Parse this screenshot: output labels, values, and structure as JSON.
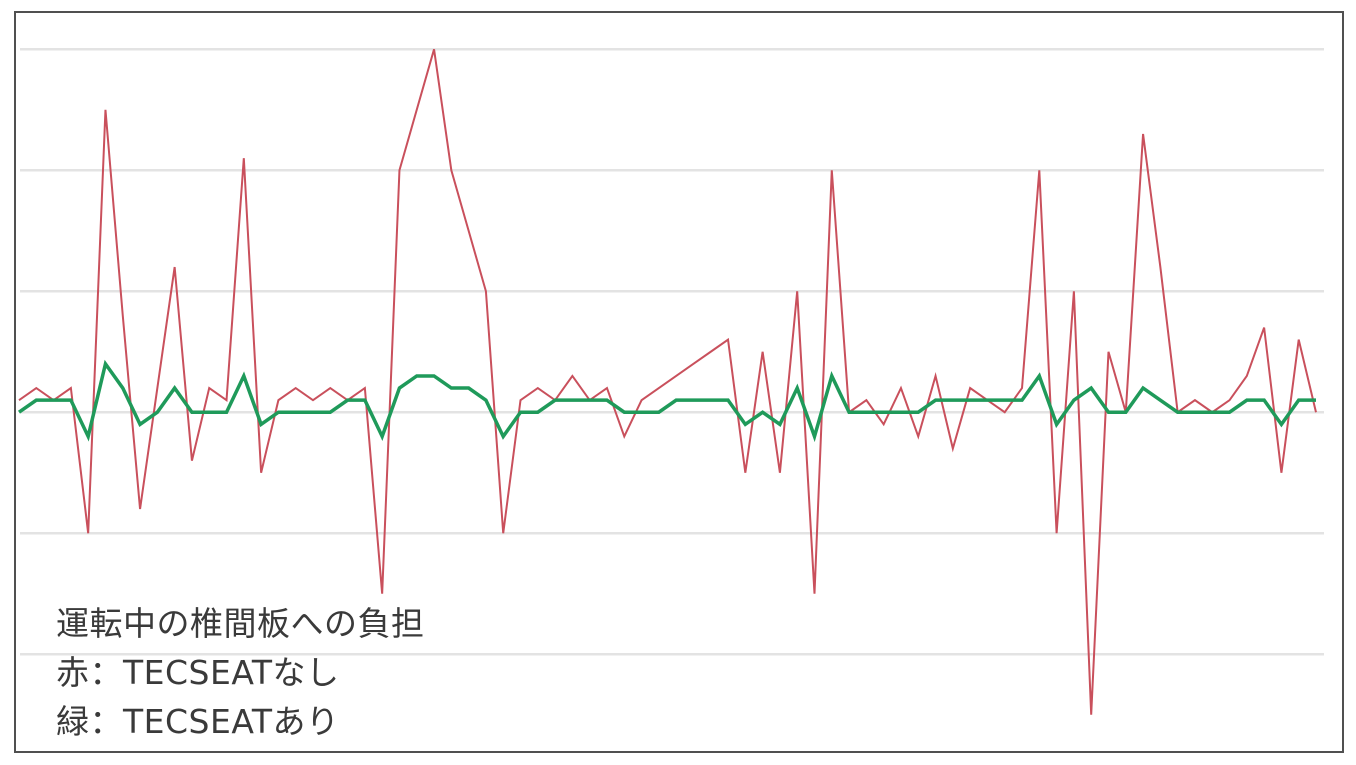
{
  "chart_data": {
    "type": "line",
    "title": "",
    "xlabel": "",
    "ylabel": "",
    "grid": true,
    "gridlines_y": [
      -2,
      -1,
      0,
      1,
      2,
      3
    ],
    "ylim": [
      -2.8,
      3.3
    ],
    "xlim": [
      0,
      75
    ],
    "x": [
      0,
      1,
      2,
      3,
      4,
      5,
      6,
      7,
      8,
      9,
      10,
      11,
      12,
      13,
      14,
      15,
      16,
      17,
      18,
      19,
      20,
      21,
      22,
      23,
      24,
      25,
      26,
      27,
      28,
      29,
      30,
      31,
      32,
      33,
      34,
      35,
      36,
      37,
      38,
      39,
      40,
      41,
      42,
      43,
      44,
      45,
      46,
      47,
      48,
      49,
      50,
      51,
      52,
      53,
      54,
      55,
      56,
      57,
      58,
      59,
      60,
      61,
      62,
      63,
      64,
      65,
      66,
      67,
      68,
      69,
      70,
      71,
      72,
      73,
      74,
      75
    ],
    "series": [
      {
        "color": "#c9505c",
        "values": [
          0.1,
          0.2,
          0.1,
          0.2,
          -1.0,
          2.5,
          0.8,
          -0.8,
          0.2,
          1.2,
          -0.4,
          0.2,
          0.1,
          2.1,
          -0.5,
          0.1,
          0.2,
          0.1,
          0.2,
          0.1,
          0.2,
          -1.5,
          2.0,
          2.5,
          3.0,
          2.0,
          1.5,
          1.0,
          -1.0,
          0.1,
          0.2,
          0.1,
          0.3,
          0.1,
          0.2,
          -0.2,
          0.1,
          0.2,
          0.3,
          0.4,
          0.5,
          0.6,
          -0.5,
          0.5,
          -0.5,
          1.0,
          -1.5,
          2.0,
          0.0,
          0.1,
          -0.1,
          0.2,
          -0.2,
          0.3,
          -0.3,
          0.2,
          0.1,
          0.0,
          0.2,
          2.0,
          -1.0,
          1.0,
          -2.5,
          0.5,
          0.0,
          2.3,
          1.2,
          0.0,
          0.1,
          0.0,
          0.1,
          0.3,
          0.7,
          -0.5,
          0.6,
          0.0
        ]
      },
      {
        "color": "#1f9a5a",
        "values": [
          0,
          0.1,
          0.1,
          0.1,
          -0.2,
          0.4,
          0.2,
          -0.1,
          0,
          0.2,
          0,
          0,
          0,
          0.3,
          -0.1,
          0,
          0,
          0,
          0,
          0.1,
          0.1,
          -0.2,
          0.2,
          0.3,
          0.3,
          0.2,
          0.2,
          0.1,
          -0.2,
          0,
          0,
          0.1,
          0.1,
          0.1,
          0.1,
          0,
          0,
          0,
          0.1,
          0.1,
          0.1,
          0.1,
          -0.1,
          0,
          -0.1,
          0.2,
          -0.2,
          0.3,
          0,
          0,
          0,
          0,
          0,
          0.1,
          0.1,
          0.1,
          0.1,
          0.1,
          0.1,
          0.3,
          -0.1,
          0.1,
          0.2,
          0,
          0,
          0.2,
          0.1,
          0,
          0,
          0,
          0,
          0.1,
          0.1,
          -0.1,
          0.1,
          0.1
        ]
      }
    ],
    "annotations": [
      "運転中の椎間板への負担",
      "赤：TECSEATなし",
      "緑：TECSEATあり"
    ]
  }
}
